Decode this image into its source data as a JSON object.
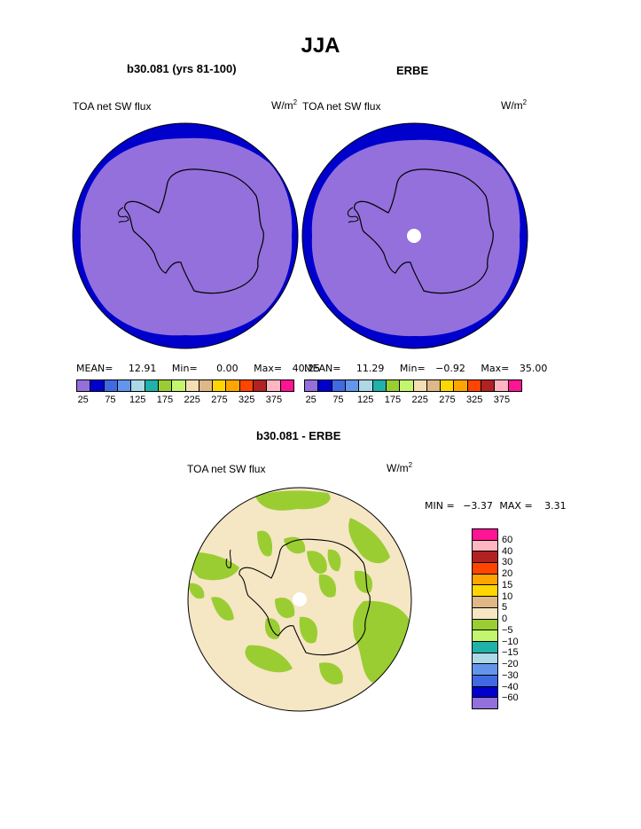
{
  "page": {
    "season": "JJA"
  },
  "top_left": {
    "case_label": "b30.081 (yrs 81-100)",
    "variable": "TOA net SW flux",
    "units_base": "W/m",
    "units_exp": "2",
    "stats": {
      "mean_label": "MEAN=",
      "mean": "12.91",
      "min_label": "Min=",
      "min": "0.00",
      "max_label": "Max=",
      "max": "40.25"
    }
  },
  "top_right": {
    "case_label": "ERBE",
    "variable": "TOA net SW flux",
    "units_base": "W/m",
    "units_exp": "2",
    "stats": {
      "mean_label": "MEAN=",
      "mean": "11.29",
      "min_label": "Min=",
      "min": "−0.92",
      "max_label": "Max=",
      "max": "35.00"
    }
  },
  "top_colorbar": {
    "colors": [
      "#9370db",
      "#0000cd",
      "#4169e1",
      "#6495ed",
      "#add8e6",
      "#20b2aa",
      "#9acd32",
      "#c3f56e",
      "#f5deb3",
      "#deb887",
      "#ffd700",
      "#ffa500",
      "#ff4500",
      "#b22222",
      "#ffb6c1",
      "#ff1493"
    ],
    "tick_labels": [
      "25",
      "75",
      "125",
      "175",
      "225",
      "275",
      "325",
      "375"
    ]
  },
  "bottom": {
    "title": "b30.081 - ERBE",
    "variable": "TOA net SW flux",
    "units_base": "W/m",
    "units_exp": "2",
    "stats": {
      "min_label": "MIN =",
      "min": "−3.37",
      "max_label": "MAX =",
      "max": "3.31"
    }
  },
  "diff_colorbar": {
    "colors_top_to_bottom": [
      "#ff1493",
      "#ffb6c1",
      "#b22222",
      "#ff4500",
      "#ffa500",
      "#ffd700",
      "#deb887",
      "#f5e6c4",
      "#9acd32",
      "#c3f56e",
      "#20b2aa",
      "#add8e6",
      "#6495ed",
      "#4169e1",
      "#0000cd",
      "#9370db"
    ],
    "labels_top_to_bottom": [
      "60",
      "40",
      "30",
      "20",
      "15",
      "10",
      "5",
      "0",
      "−5",
      "−10",
      "−15",
      "−20",
      "−30",
      "−40",
      "−60"
    ]
  },
  "map_colors": {
    "purple": "#9370db",
    "navy": "#0000cd",
    "cream": "#f5e6c4",
    "green": "#9acd32"
  }
}
